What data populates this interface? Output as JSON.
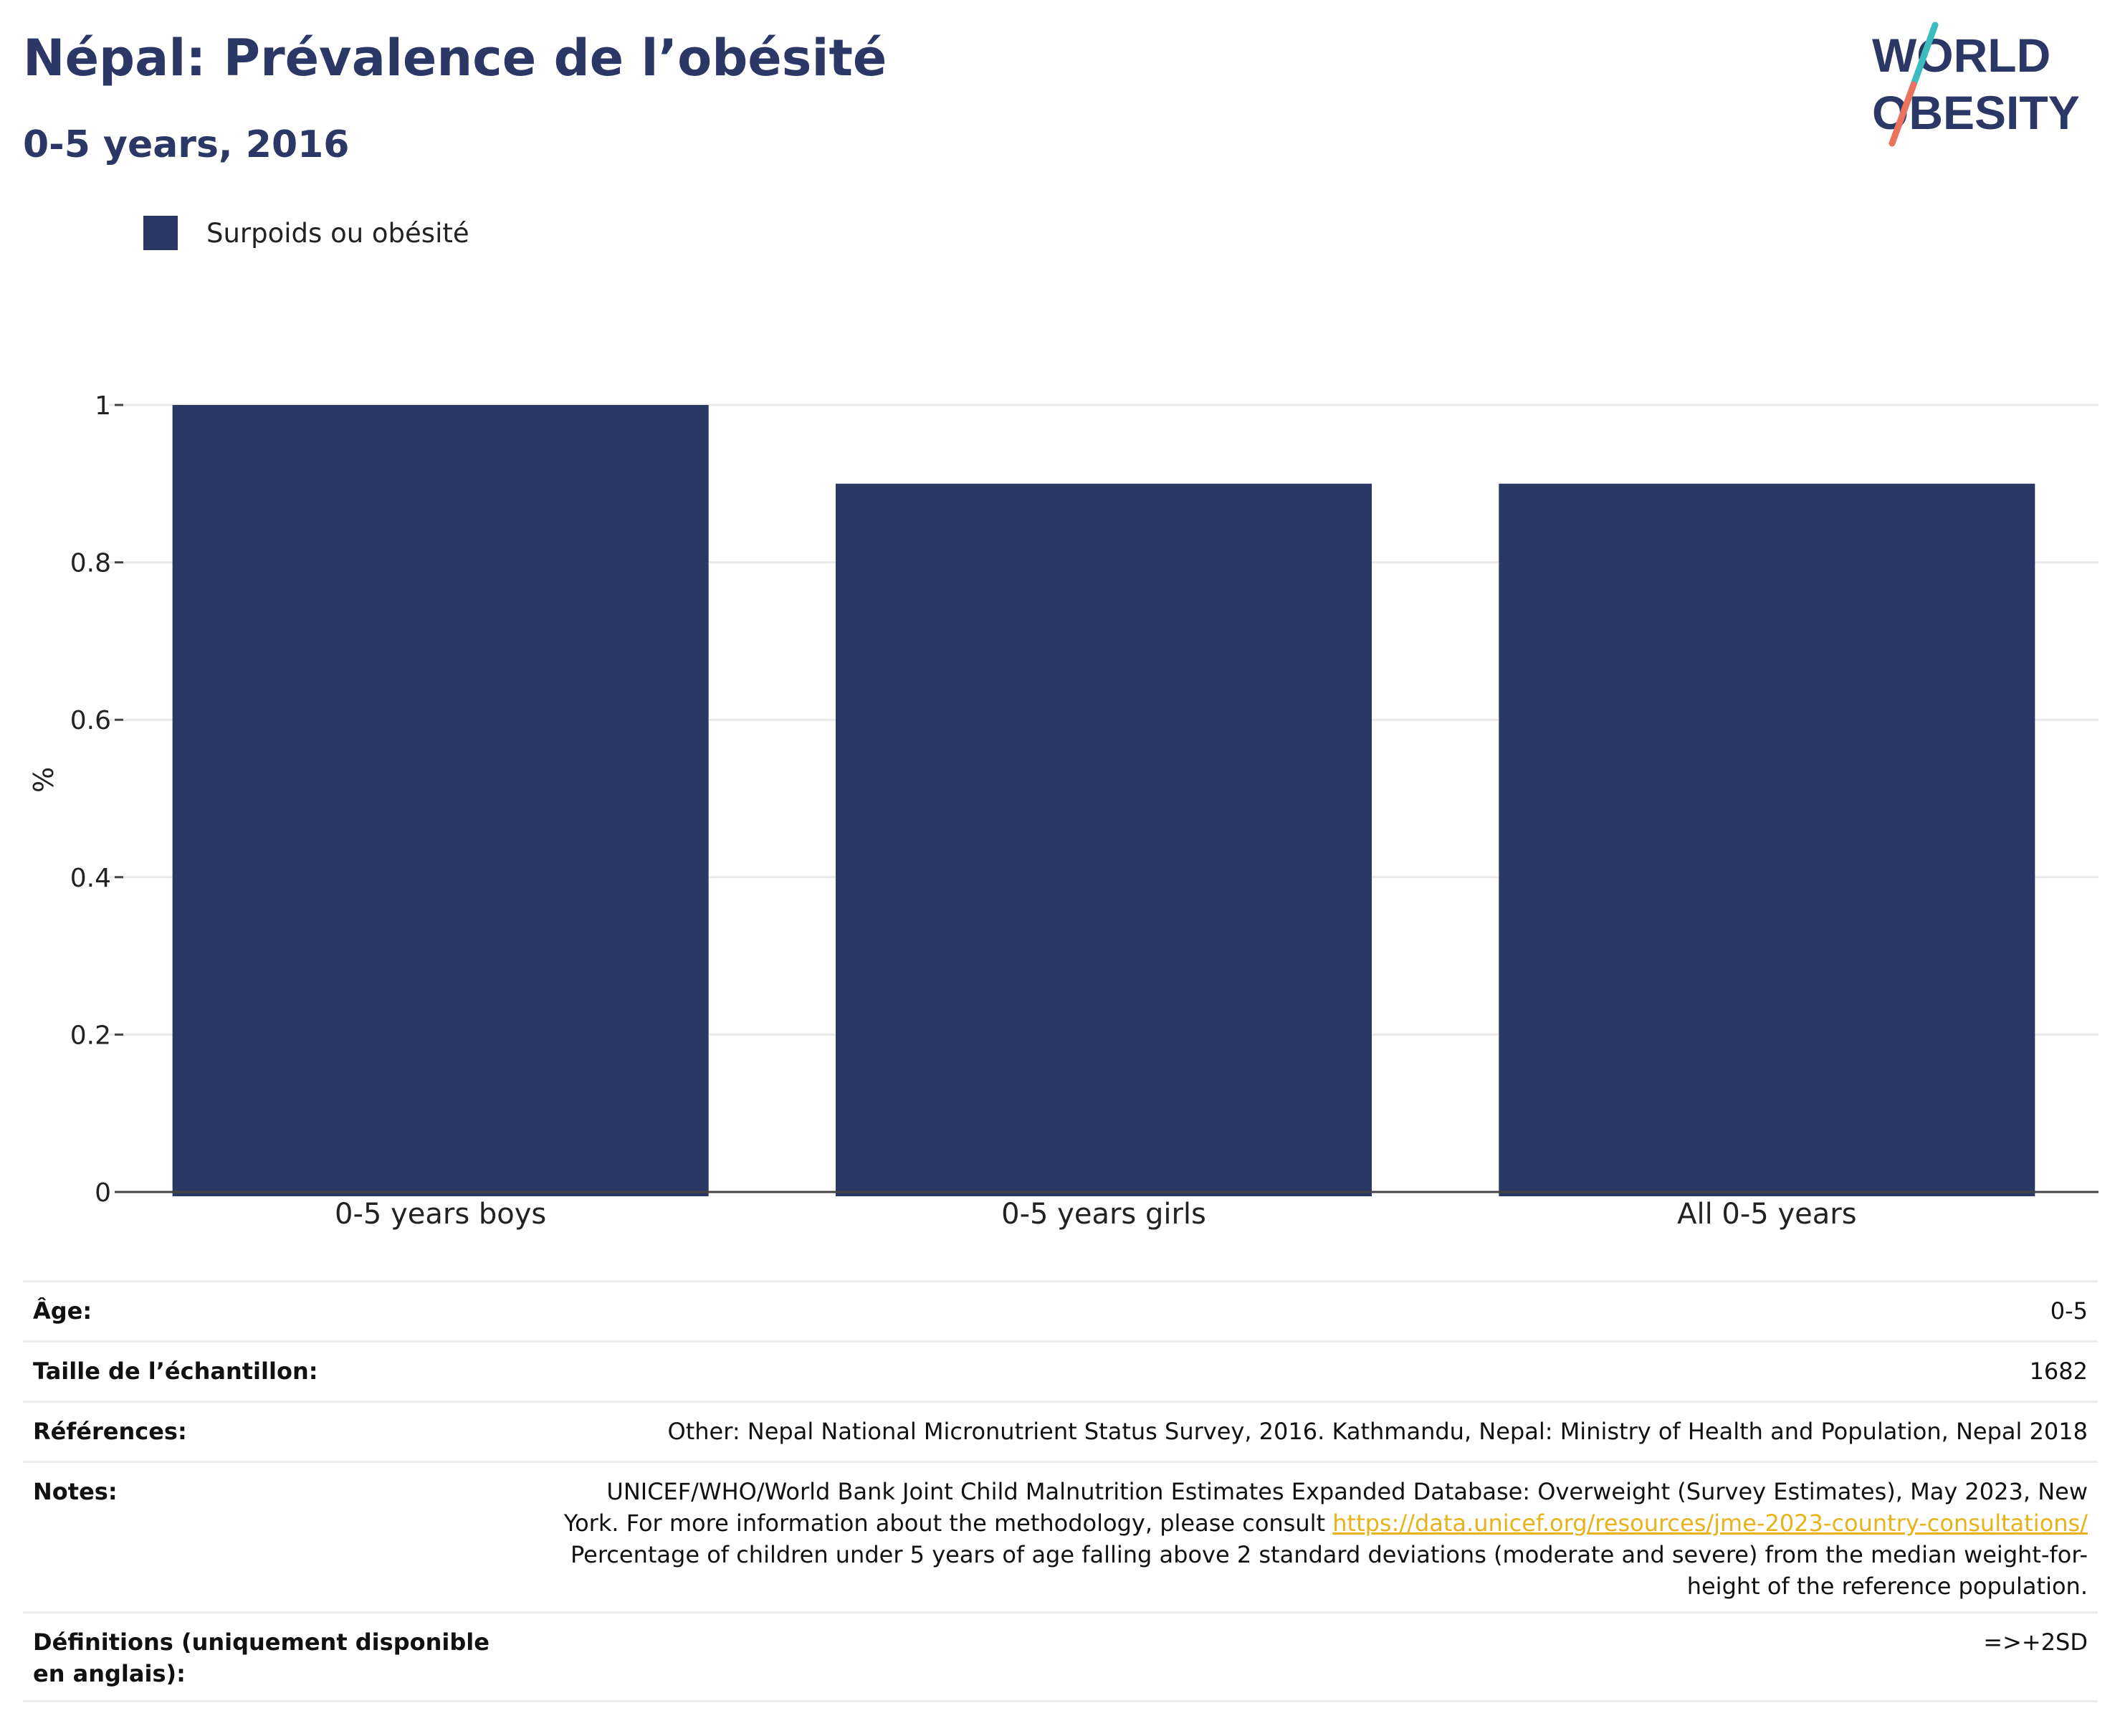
{
  "header": {
    "title": "Népal: Prévalence de l’obésité",
    "subtitle": "0-5 years, 2016"
  },
  "logo": {
    "line1": "WORLD",
    "line2": "OBESITY",
    "colors": {
      "navy": "#2b3765",
      "teal": "#3dbcbf",
      "coral": "#e9735e"
    }
  },
  "legend": {
    "label": "Surpoids ou obésité",
    "color": "#2b3765"
  },
  "chart_data": {
    "type": "bar",
    "categories": [
      "0-5 years boys",
      "0-5 years girls",
      "All 0-5 years"
    ],
    "series": [
      {
        "name": "Surpoids ou obésité",
        "values": [
          1.0,
          0.9,
          0.9
        ]
      }
    ],
    "ylabel": "%",
    "ylim": [
      0,
      1.1
    ],
    "yticks": [
      "0",
      "0.2",
      "0.4",
      "0.6",
      "0.8",
      "1"
    ],
    "grid": true,
    "legend_position": "top-left",
    "bar_color": "#2b3765"
  },
  "info_table": {
    "age": {
      "label": "Âge:",
      "value": "0-5"
    },
    "sample": {
      "label": "Taille de l’échantillon:",
      "value": "1682"
    },
    "references": {
      "label": "Références:",
      "value": "Other: Nepal National Micronutrient Status Survey, 2016. Kathmandu, Nepal: Ministry of Health and Population, Nepal 2018"
    },
    "notes": {
      "label": "Notes:",
      "line1": "UNICEF/WHO/World Bank Joint Child Malnutrition Estimates Expanded Database: Overweight (Survey Estimates), May 2023, New",
      "line2_prefix": "York. For more information about the methodology, please consult ",
      "link": "https://data.unicef.org/resources/jme-2023-country-consultations/",
      "line3": "Percentage of children under 5 years of age falling above 2 standard deviations (moderate and severe) from the median weight-for-",
      "line4": "height of the reference population."
    },
    "definitions": {
      "label": "Définitions (uniquement disponible en anglais):",
      "value": "=>+2SD"
    }
  }
}
